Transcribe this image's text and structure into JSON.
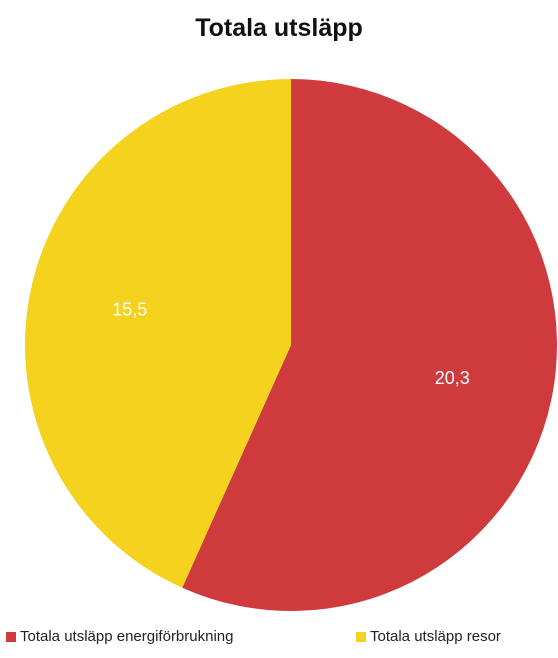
{
  "chart_data": {
    "type": "pie",
    "title": "Totala utsläpp",
    "slices": [
      {
        "name": "Totala utsläpp energiförbrukning",
        "value": 20.3,
        "label": "20,3",
        "color": "#cf3a3d"
      },
      {
        "name": "Totala utsläpp resor",
        "value": 15.5,
        "label": "15,5",
        "color": "#f5d21d"
      }
    ],
    "start_angle_deg": 0,
    "direction": "clockwise",
    "legend_position": "bottom"
  }
}
